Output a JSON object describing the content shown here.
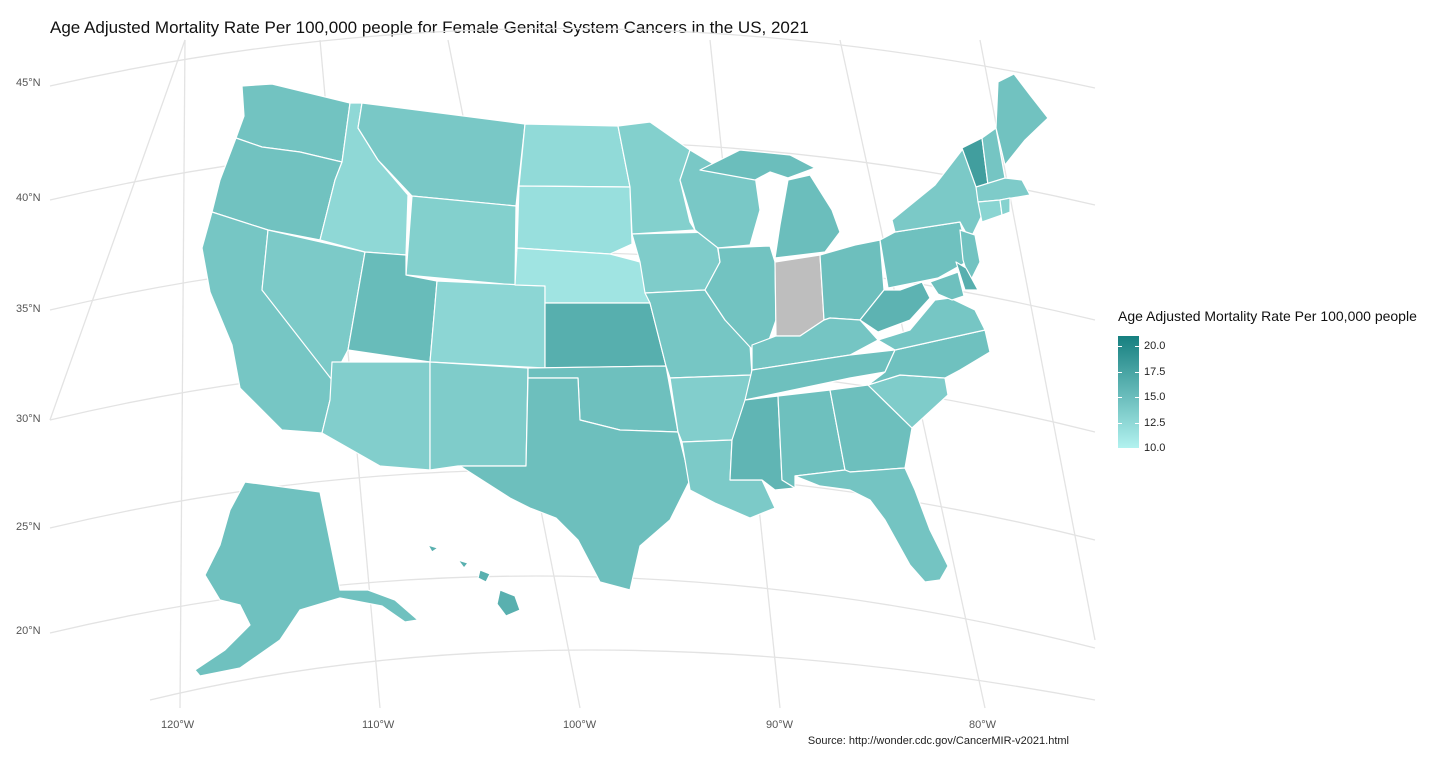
{
  "title": "Age Adjusted Mortality Rate Per 100,000 people for Female Genital System Cancers in the US, 2021",
  "source": "Source: http://wonder.cdc.gov/CancerMIR-v2021.html",
  "axes": {
    "lat_labels": [
      "45°N",
      "40°N",
      "35°N",
      "30°N",
      "25°N",
      "20°N"
    ],
    "lon_labels": [
      "120°W",
      "110°W",
      "100°W",
      "90°W",
      "80°W"
    ]
  },
  "legend": {
    "title": "Age Adjusted Mortality Rate Per 100,000 people",
    "ticks": [
      "20.0",
      "17.5",
      "15.0",
      "12.5",
      "10.0"
    ],
    "min": 10.0,
    "max": 21.0,
    "low_color": "#B2F2EF",
    "high_color": "#167F7F",
    "na_color": "#BEBEBE"
  },
  "chart_data": {
    "type": "choropleth",
    "variable": "Age Adjusted Mortality Rate Per 100,000 people",
    "states": [
      {
        "state": "Washington",
        "value": 14.5
      },
      {
        "state": "Oregon",
        "value": 14.6
      },
      {
        "state": "California",
        "value": 14.2
      },
      {
        "state": "Nevada",
        "value": 13.8
      },
      {
        "state": "Idaho",
        "value": 12.5
      },
      {
        "state": "Montana",
        "value": 14.0
      },
      {
        "state": "Wyoming",
        "value": 13.3
      },
      {
        "state": "Utah",
        "value": 15.2
      },
      {
        "state": "Arizona",
        "value": 13.4
      },
      {
        "state": "Colorado",
        "value": 12.7
      },
      {
        "state": "New Mexico",
        "value": 13.6
      },
      {
        "state": "North Dakota",
        "value": 12.3
      },
      {
        "state": "South Dakota",
        "value": 11.8
      },
      {
        "state": "Nebraska",
        "value": 11.3
      },
      {
        "state": "Kansas",
        "value": 16.4
      },
      {
        "state": "Oklahoma",
        "value": 14.8
      },
      {
        "state": "Texas",
        "value": 14.9
      },
      {
        "state": "Minnesota",
        "value": 13.3
      },
      {
        "state": "Iowa",
        "value": 13.6
      },
      {
        "state": "Missouri",
        "value": 14.2
      },
      {
        "state": "Arkansas",
        "value": 13.4
      },
      {
        "state": "Louisiana",
        "value": 13.8
      },
      {
        "state": "Wisconsin",
        "value": 14.0
      },
      {
        "state": "Illinois",
        "value": 14.5
      },
      {
        "state": "Indiana",
        "value": null
      },
      {
        "state": "Michigan",
        "value": 15.0
      },
      {
        "state": "Ohio",
        "value": 14.9
      },
      {
        "state": "Kentucky",
        "value": 14.3
      },
      {
        "state": "Tennessee",
        "value": 14.8
      },
      {
        "state": "Mississippi",
        "value": 15.8
      },
      {
        "state": "Alabama",
        "value": 14.8
      },
      {
        "state": "Georgia",
        "value": 14.9
      },
      {
        "state": "Florida",
        "value": 14.4
      },
      {
        "state": "South Carolina",
        "value": 13.6
      },
      {
        "state": "North Carolina",
        "value": 14.7
      },
      {
        "state": "Virginia",
        "value": 14.2
      },
      {
        "state": "West Virginia",
        "value": 16.0
      },
      {
        "state": "Pennsylvania",
        "value": 14.7
      },
      {
        "state": "New York",
        "value": 13.9
      },
      {
        "state": "New Jersey",
        "value": 14.5
      },
      {
        "state": "Delaware",
        "value": 16.4
      },
      {
        "state": "Maryland",
        "value": 14.8
      },
      {
        "state": "Vermont",
        "value": 18.0
      },
      {
        "state": "New Hampshire",
        "value": 14.3
      },
      {
        "state": "Maine",
        "value": 14.6
      },
      {
        "state": "Massachusetts",
        "value": 13.7
      },
      {
        "state": "Connecticut",
        "value": 12.8
      },
      {
        "state": "Rhode Island",
        "value": 13.1
      },
      {
        "state": "Alaska",
        "value": 14.7
      },
      {
        "state": "Hawaii",
        "value": 16.3
      }
    ]
  }
}
